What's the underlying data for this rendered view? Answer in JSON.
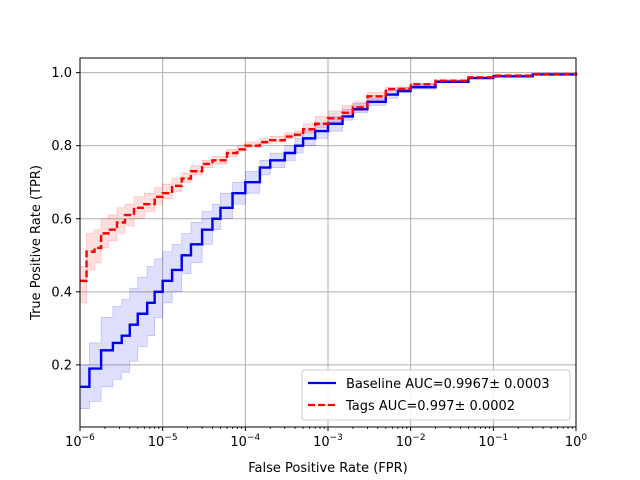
{
  "chart_data": {
    "type": "line",
    "title": "",
    "xlabel": "False Positive Rate (FPR)",
    "ylabel": "True Positive Rate (TPR)",
    "xscale": "log",
    "xlim": [
      1e-06,
      1
    ],
    "ylim": [
      0.03,
      1.04
    ],
    "grid": true,
    "legend_position": "lower-right",
    "x_ticks": [
      {
        "value": 1e-06,
        "base": "10",
        "exp": "−6"
      },
      {
        "value": 1e-05,
        "base": "10",
        "exp": "−5"
      },
      {
        "value": 0.0001,
        "base": "10",
        "exp": "−4"
      },
      {
        "value": 0.001,
        "base": "10",
        "exp": "−3"
      },
      {
        "value": 0.01,
        "base": "10",
        "exp": "−2"
      },
      {
        "value": 0.1,
        "base": "10",
        "exp": "−1"
      },
      {
        "value": 1,
        "base": "10",
        "exp": "0"
      }
    ],
    "y_ticks": [
      {
        "value": 0.2,
        "label": "0.2"
      },
      {
        "value": 0.4,
        "label": "0.4"
      },
      {
        "value": 0.6,
        "label": "0.6"
      },
      {
        "value": 0.8,
        "label": "0.8"
      },
      {
        "value": 1.0,
        "label": "1.0"
      }
    ],
    "series": [
      {
        "name": "Baseline AUC=0.9967± 0.0003",
        "color": "#0000ee",
        "style": "solid",
        "x": [
          1e-06,
          1.3e-06,
          1.8e-06,
          2.5e-06,
          3.2e-06,
          4e-06,
          5e-06,
          6.5e-06,
          8e-06,
          1e-05,
          1.3e-05,
          1.7e-05,
          2.2e-05,
          3e-05,
          4e-05,
          5e-05,
          7e-05,
          0.0001,
          0.00015,
          0.0002,
          0.0003,
          0.0004,
          0.0005,
          0.0007,
          0.001,
          0.0015,
          0.002,
          0.003,
          0.005,
          0.007,
          0.01,
          0.02,
          0.05,
          0.1,
          0.3,
          1
        ],
        "y": [
          0.14,
          0.19,
          0.24,
          0.26,
          0.28,
          0.31,
          0.34,
          0.37,
          0.4,
          0.43,
          0.46,
          0.5,
          0.53,
          0.57,
          0.6,
          0.63,
          0.67,
          0.7,
          0.74,
          0.76,
          0.78,
          0.8,
          0.82,
          0.84,
          0.86,
          0.88,
          0.9,
          0.92,
          0.94,
          0.95,
          0.96,
          0.975,
          0.985,
          0.99,
          0.995,
          1.0
        ],
        "band_low": [
          0.08,
          0.1,
          0.14,
          0.16,
          0.18,
          0.21,
          0.25,
          0.28,
          0.33,
          0.37,
          0.4,
          0.45,
          0.48,
          0.53,
          0.57,
          0.6,
          0.64,
          0.67,
          0.72,
          0.74,
          0.76,
          0.78,
          0.8,
          0.82,
          0.84,
          0.87,
          0.89,
          0.91,
          0.93,
          0.945,
          0.955,
          0.972,
          0.983,
          0.989,
          0.994,
          0.999
        ],
        "band_high": [
          0.2,
          0.26,
          0.33,
          0.36,
          0.38,
          0.41,
          0.44,
          0.47,
          0.49,
          0.51,
          0.53,
          0.56,
          0.59,
          0.62,
          0.64,
          0.67,
          0.7,
          0.73,
          0.76,
          0.78,
          0.8,
          0.82,
          0.84,
          0.86,
          0.88,
          0.9,
          0.915,
          0.93,
          0.95,
          0.96,
          0.968,
          0.978,
          0.987,
          0.992,
          0.996,
          1.0
        ]
      },
      {
        "name": "Tags AUC=0.997± 0.0002",
        "color": "#ff0000",
        "style": "dashed",
        "x": [
          1e-06,
          1.2e-06,
          1.5e-06,
          1.8e-06,
          2.2e-06,
          2.8e-06,
          3.5e-06,
          4.5e-06,
          6e-06,
          8e-06,
          1e-05,
          1.3e-05,
          1.7e-05,
          2.2e-05,
          3e-05,
          4e-05,
          6e-05,
          8e-05,
          0.0001,
          0.00015,
          0.0002,
          0.0003,
          0.0004,
          0.0005,
          0.0007,
          0.001,
          0.0015,
          0.002,
          0.003,
          0.005,
          0.01,
          0.02,
          0.05,
          0.1,
          0.3,
          1
        ],
        "y": [
          0.43,
          0.51,
          0.52,
          0.56,
          0.57,
          0.59,
          0.61,
          0.63,
          0.64,
          0.66,
          0.67,
          0.69,
          0.71,
          0.73,
          0.75,
          0.76,
          0.78,
          0.79,
          0.8,
          0.81,
          0.815,
          0.825,
          0.83,
          0.845,
          0.86,
          0.875,
          0.89,
          0.905,
          0.935,
          0.955,
          0.968,
          0.978,
          0.987,
          0.992,
          0.996,
          1.0
        ],
        "band_low": [
          0.37,
          0.46,
          0.48,
          0.52,
          0.54,
          0.56,
          0.58,
          0.6,
          0.62,
          0.64,
          0.655,
          0.675,
          0.7,
          0.72,
          0.74,
          0.75,
          0.77,
          0.785,
          0.795,
          0.805,
          0.81,
          0.82,
          0.825,
          0.835,
          0.85,
          0.865,
          0.88,
          0.895,
          0.925,
          0.95,
          0.965,
          0.976,
          0.986,
          0.991,
          0.995,
          0.999
        ],
        "band_high": [
          0.47,
          0.56,
          0.57,
          0.6,
          0.61,
          0.63,
          0.64,
          0.66,
          0.67,
          0.685,
          0.695,
          0.71,
          0.725,
          0.745,
          0.76,
          0.77,
          0.79,
          0.8,
          0.81,
          0.82,
          0.825,
          0.835,
          0.84,
          0.86,
          0.88,
          0.895,
          0.91,
          0.92,
          0.945,
          0.96,
          0.971,
          0.98,
          0.988,
          0.993,
          0.997,
          1.0
        ]
      }
    ]
  }
}
